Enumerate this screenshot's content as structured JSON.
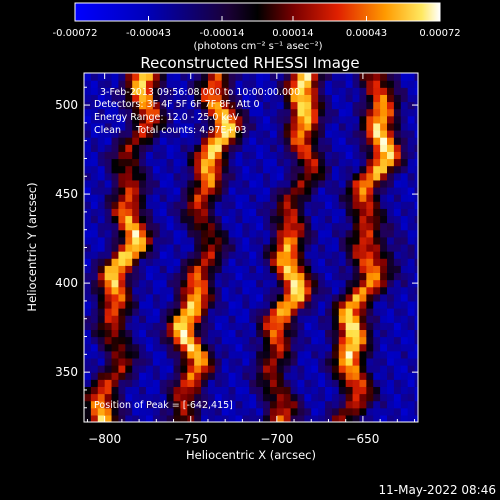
{
  "colorbar": {
    "tick_labels": [
      "-0.00072",
      "-0.00043",
      "-0.00014",
      "0.00014",
      "0.00043",
      "0.00072"
    ],
    "unit_label": "(photons cm⁻² s⁻¹ asec⁻²)",
    "range": [
      -0.00072,
      0.00072
    ]
  },
  "chart_data": {
    "type": "heatmap",
    "title": "Reconstructed RHESSI Image",
    "xlabel": "Heliocentric X (arcsec)",
    "ylabel": "Heliocentric Y (arcsec)",
    "xlim": [
      -812,
      -618
    ],
    "ylim": [
      322,
      518
    ],
    "x_ticks": [
      -800,
      -750,
      -700,
      -650
    ],
    "y_ticks": [
      350,
      400,
      450,
      500
    ],
    "annotations": [
      "3-Feb-2013 09:56:08.000 to 10:00:00.000",
      "Detectors: 3F 4F 5F 6F 7F 8F, Att 0",
      "Energy Range: 12.0 - 25.0 keV",
      "Clean     Total counts: 4.97E+03"
    ],
    "peak_label": "Position of Peak = [-642,415]",
    "peak_position": [
      -642,
      415
    ],
    "bright_bands_x_at_y450": [
      -785,
      -740,
      -688,
      -645
    ],
    "bands_tilt_arcsec_per_arcsec": 0.12
  },
  "footer": {
    "timestamp": "11-May-2022 08:46"
  }
}
